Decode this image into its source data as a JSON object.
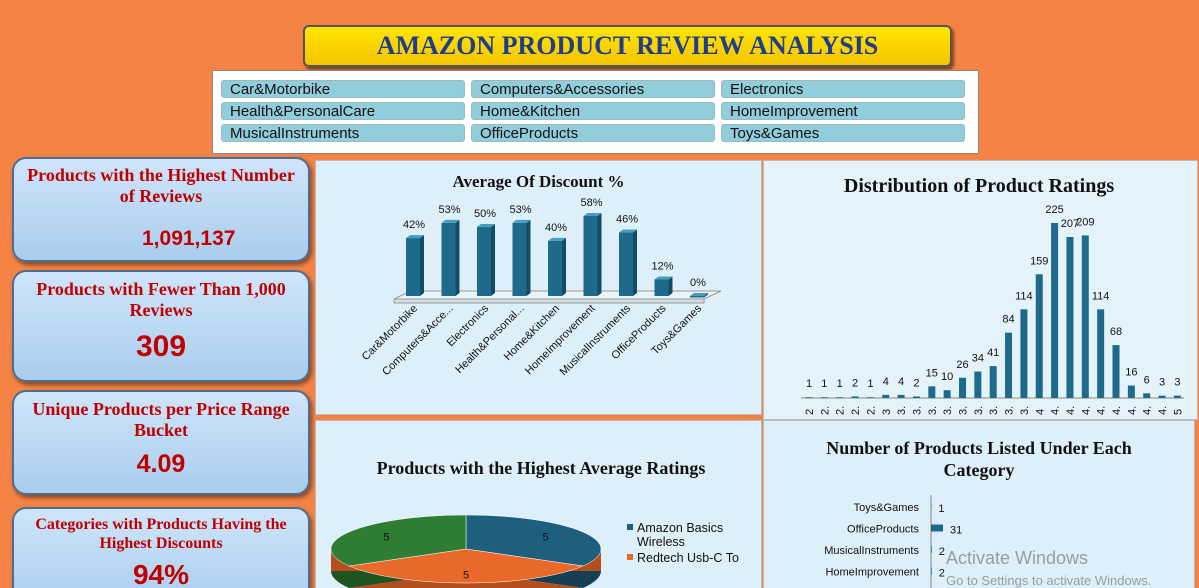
{
  "header": {
    "title": "AMAZON PRODUCT REVIEW ANALYSIS"
  },
  "slicer": {
    "items": [
      "Car&Motorbike",
      "Computers&Accessories",
      "Electronics",
      "Health&PersonalCare",
      "Home&Kitchen",
      "HomeImprovement",
      "MusicalInstruments",
      "OfficeProducts",
      "Toys&Games"
    ]
  },
  "kpis": [
    {
      "label": "Products with the Highest Number of Reviews",
      "value": "1,091,137"
    },
    {
      "label": "Products with Fewer Than 1,000 Reviews",
      "value": "309"
    },
    {
      "label": "Unique Products per Price Range Bucket",
      "value": "4.09"
    },
    {
      "label": "Categories with Products Having the Highest Discounts",
      "value": "94%"
    }
  ],
  "chart_data": [
    {
      "type": "bar",
      "title": "Average Of Discount %",
      "categories": [
        "Car&Motorbike",
        "Computers&Acce...",
        "Electronics",
        "Health&Personal...",
        "Home&Kitchen",
        "HomeImprovement",
        "MusicalInstruments",
        "OfficeProducts",
        "Toys&Games"
      ],
      "values": [
        42,
        53,
        50,
        53,
        40,
        58,
        46,
        12,
        0
      ],
      "value_labels": [
        "42%",
        "53%",
        "50%",
        "53%",
        "40%",
        "58%",
        "46%",
        "12%",
        "0%"
      ],
      "color": "#1F6A8A"
    },
    {
      "type": "column",
      "title": "Distribution  of Product Ratings",
      "categories": [
        "2",
        "2.",
        "2.",
        "2.",
        "2.",
        "3",
        "3.",
        "3.",
        "3.",
        "3.",
        "3.",
        "3.",
        "3.",
        "3.",
        "3.",
        "4",
        "4.",
        "4.",
        "4.",
        "4.",
        "4.",
        "4.",
        "4.",
        "4.",
        "5"
      ],
      "values": [
        1,
        1,
        1,
        2,
        1,
        4,
        4,
        2,
        15,
        10,
        26,
        34,
        41,
        84,
        114,
        159,
        225,
        207,
        209,
        114,
        68,
        16,
        6,
        3,
        3
      ],
      "color": "#1F6A8A"
    },
    {
      "type": "pie",
      "title": "Products with the Highest Average Ratings",
      "labels": [
        "Amazon Basics Wireless",
        "Redtech Usb-C To",
        null
      ],
      "values": [
        5,
        5,
        5
      ],
      "colors": [
        "#1F5F7E",
        "#E8692A",
        "#2E7D32"
      ]
    },
    {
      "type": "hbar",
      "title": "Number of Products Listed Under Each Category",
      "categories": [
        "Toys&Games",
        "OfficeProducts",
        "MusicalInstruments",
        "HomeImprovement"
      ],
      "values": [
        1,
        31,
        2,
        2
      ],
      "color": "#1F6A8A"
    }
  ],
  "watermark": {
    "title": "Activate Windows",
    "subtitle": "Go to Settings to activate Windows."
  }
}
